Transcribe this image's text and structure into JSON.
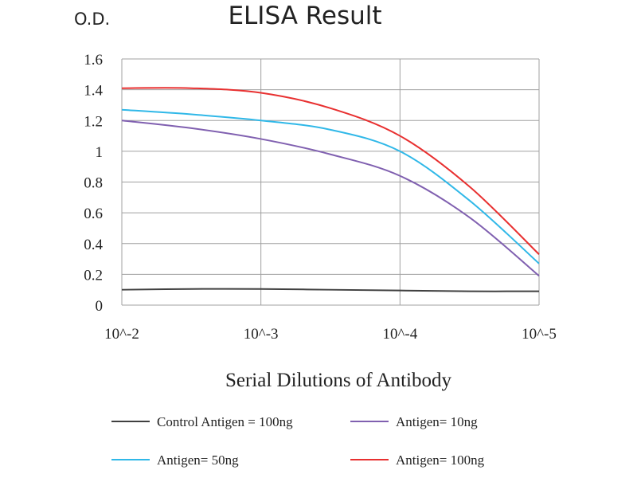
{
  "chart_data": {
    "type": "line",
    "title": "ELISA Result",
    "ylabel": "O.D.",
    "xlabel": "Serial Dilutions of Antibody",
    "ylim": [
      0,
      1.6
    ],
    "yticks": [
      "0",
      "0.2",
      "0.4",
      "0.6",
      "0.8",
      "1",
      "1.2",
      "1.4",
      "1.6"
    ],
    "x_positions": [
      0,
      0.5,
      1,
      1.5,
      2,
      2.5,
      3
    ],
    "xticks": [
      "10^-2",
      "10^-3",
      "10^-4",
      "10^-5"
    ],
    "grid": true,
    "legend_position": "bottom",
    "series": [
      {
        "name": "Control Antigen = 100ng",
        "color": "#404040",
        "values": [
          0.1,
          0.105,
          0.105,
          0.1,
          0.095,
          0.09,
          0.09
        ]
      },
      {
        "name": "Antigen= 10ng",
        "color": "#8060b0",
        "values": [
          1.2,
          1.15,
          1.08,
          0.98,
          0.84,
          0.57,
          0.19
        ]
      },
      {
        "name": "Antigen= 50ng",
        "color": "#30b8e8",
        "values": [
          1.27,
          1.24,
          1.2,
          1.14,
          1.0,
          0.68,
          0.27
        ]
      },
      {
        "name": "Antigen= 100ng",
        "color": "#e83030",
        "values": [
          1.41,
          1.41,
          1.38,
          1.28,
          1.1,
          0.77,
          0.33
        ]
      }
    ]
  }
}
